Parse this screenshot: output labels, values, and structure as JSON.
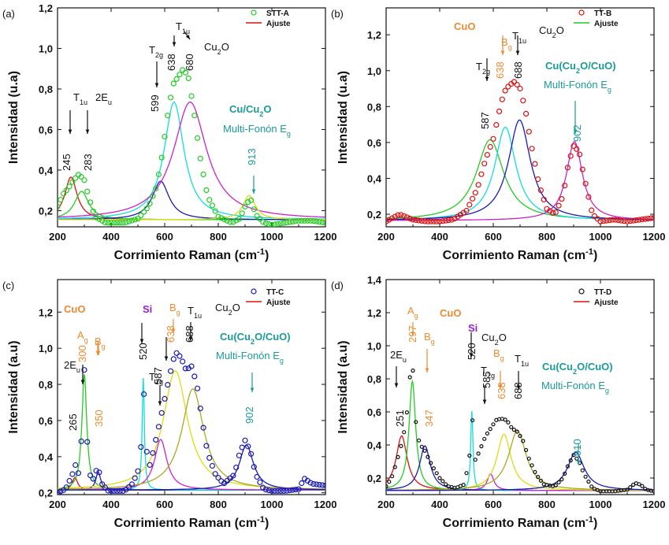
{
  "chart_data": [
    {
      "type": "line",
      "panel_label": "(a)",
      "xlabel": "Corrimiento Raman (cm⁻¹)",
      "ylabel": "Intensidad (u.a)",
      "xlim": [
        200,
        1200
      ],
      "ylim": [
        0.12,
        1.2
      ],
      "xticks": [
        200,
        400,
        600,
        800,
        1000,
        1200
      ],
      "yticks": [
        0.2,
        0.4,
        0.6,
        0.8,
        1.0,
        1.2
      ],
      "ytick_labels": [
        "0,2",
        "0,4",
        "0,6",
        "0,8",
        "1,0",
        "1,2"
      ],
      "legend": {
        "position": "top-right",
        "entries": [
          {
            "name": "STT-A",
            "kind": "marker",
            "color": "#22cc22"
          },
          {
            "name": "Ajuste",
            "kind": "line",
            "color": "#dd1111"
          }
        ]
      },
      "series": [
        {
          "name": "STT-A",
          "color": "#22cc22",
          "x": [
            200,
            220,
            240,
            260,
            280,
            300,
            320,
            340,
            380,
            450,
            500,
            540,
            570,
            590,
            610,
            630,
            650,
            670,
            690,
            710,
            730,
            760,
            800,
            850,
            880,
            900,
            920,
            940,
            970,
            1000,
            1050,
            1100,
            1150,
            1200
          ],
          "y": [
            0.22,
            0.28,
            0.31,
            0.35,
            0.38,
            0.35,
            0.25,
            0.17,
            0.14,
            0.14,
            0.16,
            0.22,
            0.32,
            0.47,
            0.66,
            0.82,
            0.86,
            0.9,
            0.85,
            0.68,
            0.48,
            0.27,
            0.17,
            0.14,
            0.16,
            0.22,
            0.26,
            0.18,
            0.14,
            0.13,
            0.14,
            0.15,
            0.15,
            0.14
          ]
        },
        {
          "name": "fit-245",
          "color": "#dd1111",
          "center": 250,
          "height": 0.21,
          "width": 28
        },
        {
          "name": "fit-283",
          "color": "#22cc22",
          "center": 290,
          "height": 0.14,
          "width": 32
        },
        {
          "name": "fit-599",
          "color": "#1a1ab5",
          "center": 585,
          "height": 0.19,
          "width": 38
        },
        {
          "name": "fit-638",
          "color": "#11dddd",
          "center": 635,
          "height": 0.58,
          "width": 45
        },
        {
          "name": "fit-680",
          "color": "#cc22cc",
          "center": 695,
          "height": 0.58,
          "width": 75
        },
        {
          "name": "fit-913",
          "color": "#dddd11",
          "center": 915,
          "height": 0.12,
          "width": 28
        }
      ],
      "annotations": [
        {
          "text": "T1u",
          "color": "#111111"
        },
        {
          "text": "2Eu",
          "color": "#111111"
        },
        {
          "text": "245",
          "color": "#111111"
        },
        {
          "text": "283",
          "color": "#111111"
        },
        {
          "text": "T2g",
          "color": "#111111"
        },
        {
          "text": "599",
          "color": "#111111"
        },
        {
          "text": "638",
          "color": "#111111"
        },
        {
          "text": "T1u",
          "color": "#111111"
        },
        {
          "text": "680",
          "color": "#111111"
        },
        {
          "text": "Cu2O",
          "color": "#111111"
        },
        {
          "text": "Cu/Cu2O",
          "color": "#1a9a9a"
        },
        {
          "text": "Multi-Fonón Eg",
          "color": "#1a9a9a"
        },
        {
          "text": "913",
          "color": "#1a9a9a"
        }
      ]
    },
    {
      "type": "line",
      "panel_label": "(b)",
      "xlabel": "Corrimiento Raman (cm⁻¹)",
      "ylabel": "Intensidad (u.a)",
      "xlim": [
        200,
        1200
      ],
      "ylim": [
        0.13,
        1.35
      ],
      "xticks": [
        200,
        400,
        600,
        800,
        1000,
        1200
      ],
      "yticks": [
        0.2,
        0.4,
        0.6,
        0.8,
        1.0,
        1.2
      ],
      "ytick_labels": [
        "0,2",
        "0,4",
        "0,6",
        "0,8",
        "1,0",
        "1,2"
      ],
      "legend": {
        "position": "top-right",
        "entries": [
          {
            "name": "TT-B",
            "kind": "marker",
            "color": "#dd1111"
          },
          {
            "name": "Ajuste",
            "kind": "line",
            "color": "#22cc22"
          }
        ]
      },
      "series": [
        {
          "name": "TT-B",
          "color": "#dd1111",
          "x": [
            200,
            250,
            300,
            350,
            400,
            450,
            500,
            540,
            570,
            600,
            620,
            640,
            660,
            680,
            700,
            720,
            740,
            770,
            800,
            830,
            860,
            880,
            900,
            920,
            940,
            970,
            1000,
            1050,
            1100,
            1150,
            1200
          ],
          "y": [
            0.16,
            0.2,
            0.17,
            0.16,
            0.16,
            0.17,
            0.22,
            0.34,
            0.5,
            0.62,
            0.76,
            0.88,
            0.92,
            0.94,
            0.9,
            0.78,
            0.6,
            0.37,
            0.23,
            0.2,
            0.3,
            0.48,
            0.58,
            0.55,
            0.4,
            0.2,
            0.16,
            0.17,
            0.16,
            0.17,
            0.18
          ]
        },
        {
          "name": "fit-587",
          "color": "#22cc22",
          "center": 588,
          "height": 0.45,
          "width": 62
        },
        {
          "name": "fit-638",
          "color": "#11dddd",
          "center": 645,
          "height": 0.52,
          "width": 48
        },
        {
          "name": "fit-688",
          "color": "#1a1ab5",
          "center": 698,
          "height": 0.56,
          "width": 50
        },
        {
          "name": "fit-902",
          "color": "#cc22cc",
          "center": 903,
          "height": 0.44,
          "width": 36
        }
      ],
      "annotations": [
        {
          "text": "CuO",
          "color": "#f08a30"
        },
        {
          "text": "Bg",
          "color": "#f08a30"
        },
        {
          "text": "638",
          "color": "#f08a30"
        },
        {
          "text": "T1u",
          "color": "#111111"
        },
        {
          "text": "688",
          "color": "#111111"
        },
        {
          "text": "Cu2O",
          "color": "#111111"
        },
        {
          "text": "T2g",
          "color": "#111111"
        },
        {
          "text": "587",
          "color": "#111111"
        },
        {
          "text": "Cu(Cu2O/CuO)",
          "color": "#1a9a9a"
        },
        {
          "text": "Multi-Fonón Eg",
          "color": "#1a9a9a"
        },
        {
          "text": "902",
          "color": "#1a9a9a"
        }
      ]
    },
    {
      "type": "line",
      "panel_label": "(c)",
      "xlabel": "Corrimiento Raman (cm⁻¹)",
      "ylabel": "Intensidad (a.u)",
      "xlim": [
        200,
        1200
      ],
      "ylim": [
        0.19,
        1.38
      ],
      "xticks": [
        200,
        400,
        600,
        800,
        1000,
        1200
      ],
      "yticks": [
        0.2,
        0.4,
        0.6,
        0.8,
        1.0,
        1.2
      ],
      "ytick_labels": [
        "0,2",
        "0,4",
        "0,6",
        "0,8",
        "1,0",
        "1,2"
      ],
      "legend": {
        "position": "top-right",
        "entries": [
          {
            "name": "TT-C",
            "kind": "marker",
            "color": "#1a1ab5"
          },
          {
            "name": "Ajuste",
            "kind": "line",
            "color": "#dd1111"
          }
        ]
      },
      "series": [
        {
          "name": "TT-C",
          "color": "#1a1ab5",
          "x": [
            200,
            230,
            255,
            265,
            280,
            292,
            300,
            310,
            325,
            340,
            350,
            365,
            390,
            420,
            450,
            480,
            500,
            515,
            520,
            530,
            545,
            560,
            580,
            600,
            620,
            640,
            660,
            680,
            700,
            720,
            740,
            760,
            790,
            820,
            860,
            880,
            900,
            920,
            940,
            970,
            1000,
            1050,
            1100,
            1120,
            1150,
            1200
          ],
          "y": [
            0.2,
            0.22,
            0.3,
            0.36,
            0.3,
            0.55,
            0.88,
            0.5,
            0.25,
            0.3,
            0.35,
            0.25,
            0.21,
            0.21,
            0.21,
            0.25,
            0.32,
            0.5,
            0.83,
            0.45,
            0.35,
            0.45,
            0.58,
            0.72,
            0.86,
            0.98,
            0.95,
            0.88,
            0.9,
            0.8,
            0.6,
            0.42,
            0.3,
            0.25,
            0.3,
            0.42,
            0.49,
            0.43,
            0.3,
            0.22,
            0.21,
            0.21,
            0.22,
            0.28,
            0.25,
            0.24
          ]
        },
        {
          "name": "fit-265",
          "color": "#dd1111",
          "center": 265,
          "height": 0.07,
          "width": 12
        },
        {
          "name": "fit-300",
          "color": "#22cc22",
          "center": 300,
          "height": 0.64,
          "width": 11
        },
        {
          "name": "fit-350",
          "color": "#1a1ab5",
          "center": 352,
          "height": 0.1,
          "width": 11
        },
        {
          "name": "fit-520",
          "color": "#11dddd",
          "center": 520,
          "height": 0.62,
          "width": 5
        },
        {
          "name": "fit-587",
          "color": "#cc22cc",
          "center": 585,
          "height": 0.28,
          "width": 28
        },
        {
          "name": "fit-638",
          "color": "#dddd11",
          "center": 640,
          "height": 0.66,
          "width": 55
        },
        {
          "name": "fit-688",
          "color": "#aaaa22",
          "center": 705,
          "height": 0.56,
          "width": 50
        },
        {
          "name": "fit-902",
          "color": "#1a1ab5",
          "center": 905,
          "height": 0.25,
          "width": 32
        }
      ],
      "annotations": [
        {
          "text": "CuO",
          "color": "#f08a30"
        },
        {
          "text": "Si",
          "color": "#9a20c8"
        },
        {
          "text": "Ag",
          "color": "#f08a30"
        },
        {
          "text": "Bg",
          "color": "#f08a30"
        },
        {
          "text": "300",
          "color": "#f08a30"
        },
        {
          "text": "350",
          "color": "#f08a30"
        },
        {
          "text": "2Eu",
          "color": "#111111"
        },
        {
          "text": "265",
          "color": "#111111"
        },
        {
          "text": "520",
          "color": "#111111"
        },
        {
          "text": "T2g",
          "color": "#111111"
        },
        {
          "text": "587",
          "color": "#111111"
        },
        {
          "text": "Bg",
          "color": "#f08a30"
        },
        {
          "text": "638",
          "color": "#f08a30"
        },
        {
          "text": "T1u",
          "color": "#111111"
        },
        {
          "text": "688",
          "color": "#111111"
        },
        {
          "text": "Cu2O",
          "color": "#111111"
        },
        {
          "text": "Cu(Cu2O/CuO)",
          "color": "#1a9a9a"
        },
        {
          "text": "Multi-Fonón Eg",
          "color": "#1a9a9a"
        },
        {
          "text": "902",
          "color": "#1a9a9a"
        }
      ]
    },
    {
      "type": "line",
      "panel_label": "(d)",
      "xlabel": "Corrimiento Raman (cm⁻¹)",
      "ylabel": "Intensidad (a.u)",
      "xlim": [
        200,
        1200
      ],
      "ylim": [
        0.1,
        1.4
      ],
      "xticks": [
        200,
        400,
        600,
        800,
        1000,
        1200
      ],
      "yticks": [
        0.2,
        0.4,
        0.6,
        0.8,
        1.0,
        1.2,
        1.4
      ],
      "ytick_labels": [
        "0,2",
        "0,4",
        "0,6",
        "0,8",
        "1,0",
        "1,2",
        "1,4"
      ],
      "legend": {
        "position": "top-right",
        "entries": [
          {
            "name": "TT-D",
            "kind": "marker",
            "color": "#111111"
          },
          {
            "name": "Ajuste",
            "kind": "line",
            "color": "#dd1111"
          }
        ]
      },
      "series": [
        {
          "name": "TT-D",
          "color": "#111111",
          "x": [
            200,
            220,
            240,
            260,
            275,
            285,
            295,
            300,
            310,
            325,
            340,
            355,
            370,
            400,
            430,
            460,
            490,
            510,
            520,
            530,
            545,
            570,
            590,
            610,
            630,
            650,
            670,
            690,
            710,
            730,
            760,
            790,
            830,
            860,
            880,
            900,
            920,
            940,
            970,
            1000,
            1050,
            1100,
            1130,
            1150,
            1170,
            1200
          ],
          "y": [
            0.15,
            0.2,
            0.3,
            0.42,
            0.55,
            0.72,
            0.95,
            0.85,
            0.55,
            0.4,
            0.38,
            0.33,
            0.28,
            0.2,
            0.15,
            0.14,
            0.16,
            0.3,
            0.62,
            0.3,
            0.35,
            0.45,
            0.5,
            0.55,
            0.56,
            0.55,
            0.5,
            0.48,
            0.43,
            0.33,
            0.22,
            0.16,
            0.15,
            0.2,
            0.28,
            0.34,
            0.3,
            0.22,
            0.14,
            0.12,
            0.12,
            0.13,
            0.17,
            0.16,
            0.13,
            0.12
          ]
        },
        {
          "name": "fit-251",
          "color": "#dd1111",
          "center": 258,
          "height": 0.33,
          "width": 25
        },
        {
          "name": "fit-297",
          "color": "#22cc22",
          "center": 298,
          "height": 0.66,
          "width": 15
        },
        {
          "name": "fit-347",
          "color": "#1a1ab5",
          "center": 345,
          "height": 0.27,
          "width": 24
        },
        {
          "name": "fit-520",
          "color": "#11dddd",
          "center": 520,
          "height": 0.48,
          "width": 5
        },
        {
          "name": "fit-585",
          "color": "#cc22cc",
          "center": 590,
          "height": 0.1,
          "width": 15
        },
        {
          "name": "fit-638",
          "color": "#dddd11",
          "center": 640,
          "height": 0.34,
          "width": 32
        },
        {
          "name": "fit-688",
          "color": "#aaaa22",
          "center": 690,
          "height": 0.36,
          "width": 40
        },
        {
          "name": "fit-910",
          "color": "#1a1ab5",
          "center": 908,
          "height": 0.23,
          "width": 38
        }
      ],
      "annotations": [
        {
          "text": "Ag",
          "color": "#f08a30"
        },
        {
          "text": "297",
          "color": "#f08a30"
        },
        {
          "text": "CuO",
          "color": "#f08a30"
        },
        {
          "text": "Bg",
          "color": "#f08a30"
        },
        {
          "text": "347",
          "color": "#f08a30"
        },
        {
          "text": "2Eu",
          "color": "#111111"
        },
        {
          "text": "251",
          "color": "#111111"
        },
        {
          "text": "Si",
          "color": "#9a20c8"
        },
        {
          "text": "520",
          "color": "#111111"
        },
        {
          "text": "T2g",
          "color": "#111111"
        },
        {
          "text": "585",
          "color": "#111111"
        },
        {
          "text": "Bg",
          "color": "#f08a30"
        },
        {
          "text": "638",
          "color": "#f08a30"
        },
        {
          "text": "T1u",
          "color": "#111111"
        },
        {
          "text": "688",
          "color": "#111111"
        },
        {
          "text": "Cu2O",
          "color": "#111111"
        },
        {
          "text": "Cu(Cu2O/CuO)",
          "color": "#1a9a9a"
        },
        {
          "text": "Multi-Fonón Eg",
          "color": "#1a9a9a"
        },
        {
          "text": "910",
          "color": "#1a9a9a"
        }
      ]
    }
  ]
}
